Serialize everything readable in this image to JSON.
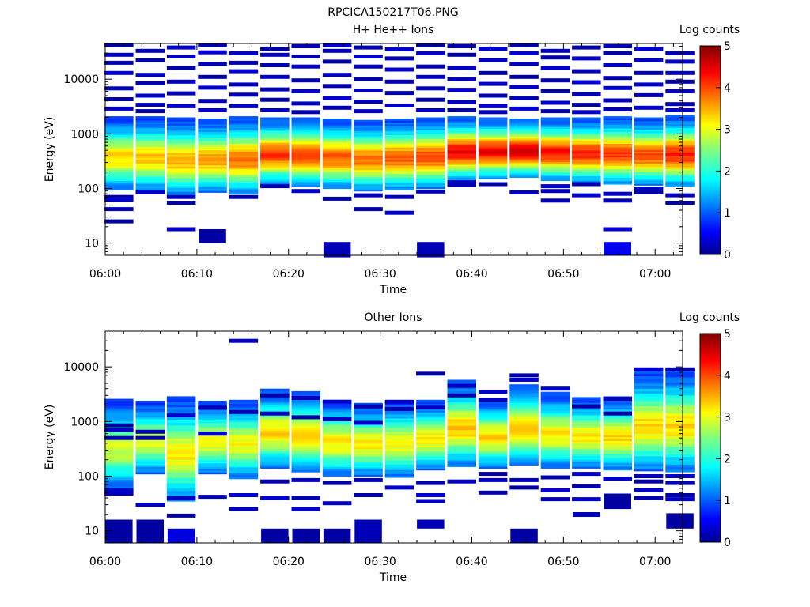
{
  "figure_title": "RPCICA150217T06.PNG",
  "chart_data": [
    {
      "type": "heatmap",
      "title": "H+ He++ Ions",
      "xlabel": "Time",
      "ylabel": "Energy (eV)",
      "x_ticks": [
        "06:00",
        "06:10",
        "06:20",
        "06:30",
        "06:40",
        "06:50",
        "07:00"
      ],
      "x_range_minutes": [
        0,
        63
      ],
      "y_scale": "log",
      "y_ticks": [
        "10",
        "100",
        "1000",
        "10000"
      ],
      "y_range": [
        6,
        45000
      ],
      "colorbar": {
        "label": "Log counts",
        "range": [
          0,
          5
        ],
        "ticks": [
          "0",
          "1",
          "2",
          "3",
          "4",
          "5"
        ]
      },
      "columns": [
        {
          "t": 1.5,
          "band_lo": 95,
          "band_hi": 2100,
          "peak": 3.3,
          "sparse": [
            42000,
            28000,
            20000,
            13000,
            6800,
            4300,
            2900,
            70,
            62,
            42,
            25
          ],
          "extra": []
        },
        {
          "t": 4.9,
          "band_lo": 90,
          "band_hi": 2100,
          "peak": 3.4,
          "sparse": [
            33000,
            22000,
            12000,
            8500,
            5000,
            3400,
            2600,
            85
          ],
          "extra": []
        },
        {
          "t": 8.3,
          "band_lo": 75,
          "band_hi": 2000,
          "peak": 3.5,
          "sparse": [
            38000,
            26000,
            16000,
            9000,
            5500,
            3200,
            70,
            55,
            18
          ],
          "extra": []
        },
        {
          "t": 11.7,
          "band_lo": 85,
          "band_hi": 1900,
          "peak": 3.6,
          "sparse": [
            42000,
            31000,
            19000,
            11000,
            7000,
            4000,
            2700
          ],
          "extra": [
            [
              10,
              18,
              0.1
            ]
          ]
        },
        {
          "t": 15.1,
          "band_lo": 80,
          "band_hi": 2100,
          "peak": 3.8,
          "sparse": [
            30000,
            20000,
            14000,
            8000,
            5200,
            3200,
            70
          ],
          "extra": []
        },
        {
          "t": 18.5,
          "band_lo": 120,
          "band_hi": 2000,
          "peak": 4.1,
          "sparse": [
            36000,
            28000,
            18000,
            11000,
            6500,
            4200,
            2700,
            110
          ],
          "extra": []
        },
        {
          "t": 21.9,
          "band_lo": 110,
          "band_hi": 2000,
          "peak": 4.0,
          "sparse": [
            40000,
            26000,
            17000,
            9500,
            6000,
            3600,
            2500,
            90
          ],
          "extra": []
        },
        {
          "t": 25.3,
          "band_lo": 100,
          "band_hi": 1900,
          "peak": 3.9,
          "sparse": [
            42000,
            33000,
            21000,
            12000,
            7500,
            4500,
            3000,
            65
          ],
          "extra": [
            [
              5.5,
              10.5,
              0.2
            ]
          ]
        },
        {
          "t": 28.7,
          "band_lo": 90,
          "band_hi": 1800,
          "peak": 3.8,
          "sparse": [
            38000,
            26000,
            17000,
            10000,
            6200,
            3900,
            2600,
            75,
            42
          ],
          "extra": []
        },
        {
          "t": 32.1,
          "band_lo": 95,
          "band_hi": 1900,
          "peak": 3.9,
          "sparse": [
            35000,
            24000,
            15000,
            9000,
            5600,
            3300,
            70,
            36
          ],
          "extra": []
        },
        {
          "t": 35.5,
          "band_lo": 100,
          "band_hi": 2000,
          "peak": 4.0,
          "sparse": [
            42000,
            30000,
            17000,
            11000,
            6800,
            4200,
            2700,
            88
          ],
          "extra": [
            [
              5.5,
              10.5,
              0.2
            ]
          ]
        },
        {
          "t": 38.9,
          "band_lo": 140,
          "band_hi": 2100,
          "peak": 4.4,
          "sparse": [
            40000,
            28000,
            16000,
            10000,
            6400,
            3800,
            2700,
            130,
            115
          ],
          "extra": []
        },
        {
          "t": 42.3,
          "band_lo": 150,
          "band_hi": 2000,
          "peak": 4.4,
          "sparse": [
            36000,
            22000,
            13000,
            8200,
            5000,
            3200,
            2500,
            120
          ],
          "extra": []
        },
        {
          "t": 45.7,
          "band_lo": 160,
          "band_hi": 1900,
          "peak": 4.5,
          "sparse": [
            42000,
            30000,
            19000,
            11000,
            7200,
            4500,
            2900,
            85
          ],
          "extra": []
        },
        {
          "t": 49.1,
          "band_lo": 140,
          "band_hi": 2000,
          "peak": 4.3,
          "sparse": [
            33000,
            25000,
            16000,
            9500,
            6000,
            3700,
            2600,
            110,
            90,
            60
          ],
          "extra": []
        },
        {
          "t": 52.5,
          "band_lo": 130,
          "band_hi": 2000,
          "peak": 4.2,
          "sparse": [
            38000,
            24000,
            14000,
            8800,
            5300,
            3400,
            2500,
            120,
            75
          ],
          "extra": []
        },
        {
          "t": 55.9,
          "band_lo": 120,
          "band_hi": 2100,
          "peak": 4.1,
          "sparse": [
            40000,
            30000,
            18000,
            10500,
            6900,
            4100,
            2800,
            80,
            60,
            18
          ],
          "extra": [
            [
              6,
              10.5,
              0.5
            ]
          ]
        },
        {
          "t": 59.3,
          "band_lo": 115,
          "band_hi": 2000,
          "peak": 4.0,
          "sparse": [
            36000,
            22000,
            13000,
            8000,
            5100,
            3000,
            100,
            85
          ],
          "extra": []
        },
        {
          "t": 62.7,
          "band_lo": 110,
          "band_hi": 2200,
          "peak": 4.2,
          "sparse": [
            30000,
            21000,
            13000,
            9000,
            6000,
            3500,
            2700,
            75,
            55
          ],
          "extra": []
        }
      ]
    },
    {
      "type": "heatmap",
      "title": "Other Ions",
      "xlabel": "Time",
      "ylabel": "Energy (eV)",
      "x_ticks": [
        "06:00",
        "06:10",
        "06:20",
        "06:30",
        "06:40",
        "06:50",
        "07:00"
      ],
      "x_range_minutes": [
        0,
        63
      ],
      "y_scale": "log",
      "y_ticks": [
        "10",
        "100",
        "1000",
        "10000"
      ],
      "y_range": [
        6,
        45000
      ],
      "colorbar": {
        "label": "Log counts",
        "range": [
          0,
          5
        ],
        "ticks": [
          "0",
          "1",
          "2",
          "3",
          "4",
          "5"
        ]
      },
      "columns": [
        {
          "t": 1.5,
          "band_lo": 60,
          "band_hi": 2600,
          "peak": 2.9,
          "sparse": [
            850,
            700,
            500,
            55,
            48
          ],
          "extra": [
            [
              6,
              16,
              0.1
            ]
          ]
        },
        {
          "t": 4.9,
          "band_lo": 110,
          "band_hi": 2400,
          "peak": 3.0,
          "sparse": [
            650,
            500,
            30
          ],
          "extra": [
            [
              6,
              16,
              0.1
            ]
          ]
        },
        {
          "t": 8.3,
          "band_lo": 35,
          "band_hi": 2900,
          "peak": 3.2,
          "sparse": [
            1300,
            40,
            19
          ],
          "extra": [
            [
              6,
              11,
              0.4
            ]
          ]
        },
        {
          "t": 11.7,
          "band_lo": 110,
          "band_hi": 2400,
          "peak": 3.1,
          "sparse": [
            1800,
            600,
            42
          ],
          "extra": []
        },
        {
          "t": 15.1,
          "band_lo": 90,
          "band_hi": 2500,
          "peak": 3.1,
          "sparse": [
            30000,
            1500,
            45,
            25
          ],
          "extra": []
        },
        {
          "t": 18.5,
          "band_lo": 140,
          "band_hi": 4000,
          "peak": 3.3,
          "sparse": [
            3000,
            1400,
            80,
            40
          ],
          "extra": [
            [
              6,
              11,
              0.1
            ]
          ]
        },
        {
          "t": 21.9,
          "band_lo": 120,
          "band_hi": 3600,
          "peak": 3.3,
          "sparse": [
            2700,
            1200,
            85,
            40,
            25
          ],
          "extra": [
            [
              6,
              11,
              0.1
            ]
          ]
        },
        {
          "t": 25.3,
          "band_lo": 100,
          "band_hi": 2500,
          "peak": 3.2,
          "sparse": [
            2300,
            1100,
            75,
            32
          ],
          "extra": [
            [
              6,
              11,
              0.1
            ]
          ]
        },
        {
          "t": 28.7,
          "band_lo": 100,
          "band_hi": 2200,
          "peak": 3.2,
          "sparse": [
            1900,
            950,
            85,
            45
          ],
          "extra": [
            [
              6,
              16,
              0.2
            ]
          ]
        },
        {
          "t": 32.1,
          "band_lo": 95,
          "band_hi": 2400,
          "peak": 3.1,
          "sparse": [
            2300,
            1700,
            62
          ],
          "extra": []
        },
        {
          "t": 35.5,
          "band_lo": 130,
          "band_hi": 2500,
          "peak": 3.2,
          "sparse": [
            7500,
            1800,
            75,
            45,
            35
          ],
          "extra": [
            [
              11,
              16,
              0.2
            ]
          ]
        },
        {
          "t": 38.9,
          "band_lo": 150,
          "band_hi": 5800,
          "peak": 3.4,
          "sparse": [
            4500,
            3000,
            80
          ],
          "extra": []
        },
        {
          "t": 42.3,
          "band_lo": 140,
          "band_hi": 2700,
          "peak": 3.3,
          "sparse": [
            3500,
            2500,
            110,
            85,
            50
          ],
          "extra": []
        },
        {
          "t": 45.7,
          "band_lo": 160,
          "band_hi": 4800,
          "peak": 3.3,
          "sparse": [
            7000,
            5800,
            85,
            62
          ],
          "extra": [
            [
              6,
              11,
              0.1
            ]
          ]
        },
        {
          "t": 49.1,
          "band_lo": 140,
          "band_hi": 3500,
          "peak": 3.2,
          "sparse": [
            4000,
            95,
            55,
            38
          ],
          "extra": []
        },
        {
          "t": 52.5,
          "band_lo": 140,
          "band_hi": 2800,
          "peak": 3.2,
          "sparse": [
            1900,
            110,
            65,
            38
          ],
          "extra": [
            [
              18,
              22,
              0.2
            ]
          ]
        },
        {
          "t": 55.9,
          "band_lo": 130,
          "band_hi": 2900,
          "peak": 3.3,
          "sparse": [
            2600,
            1400,
            90
          ],
          "extra": [
            [
              25,
              48,
              0.1
            ]
          ]
        },
        {
          "t": 59.3,
          "band_lo": 125,
          "band_hi": 8500,
          "peak": 3.3,
          "sparse": [
            9000,
            100,
            80,
            55,
            40
          ],
          "extra": []
        },
        {
          "t": 62.7,
          "band_lo": 120,
          "band_hi": 9000,
          "peak": 3.3,
          "sparse": [
            9000,
            100,
            75,
            45,
            38
          ],
          "extra": [
            [
              11,
              21,
              0.1
            ]
          ]
        }
      ]
    }
  ]
}
